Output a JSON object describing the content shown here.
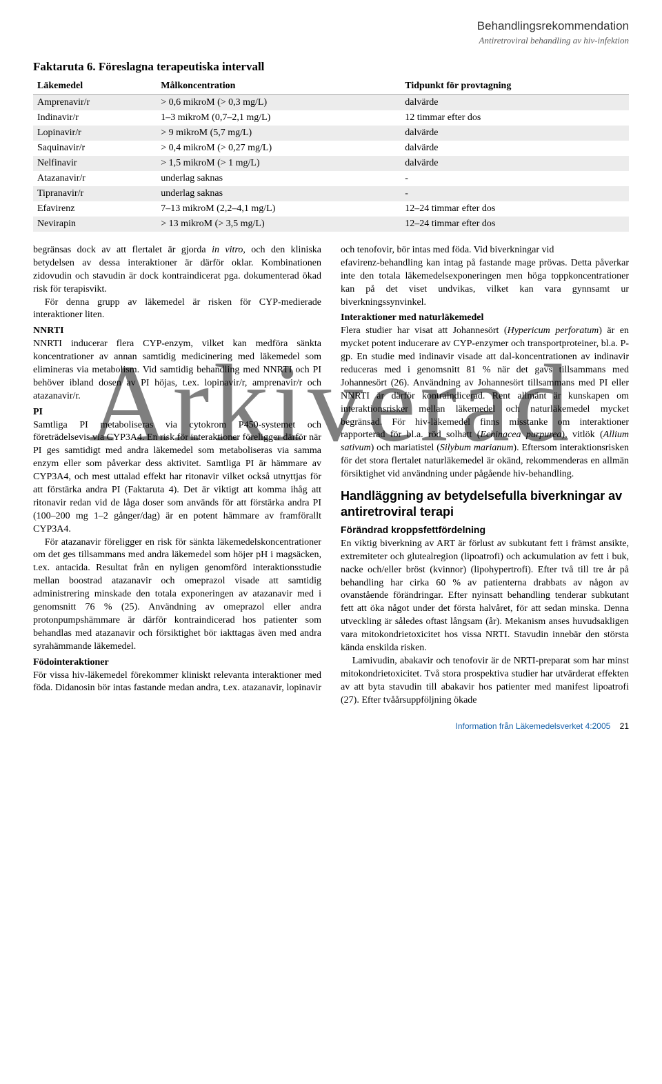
{
  "header": {
    "title": "Behandlingsrekommendation",
    "subtitle": "Antiretroviral behandling av hiv-infektion"
  },
  "factbox": {
    "title": "Faktaruta 6. Föreslagna terapeutiska intervall",
    "columns": [
      "Läkemedel",
      "Målkoncentration",
      "Tidpunkt för provtagning"
    ],
    "rows": [
      {
        "c0": "Amprenavir/r",
        "c1": "> 0,6 mikroM (> 0,3 mg/L)",
        "c2": "dalvärde",
        "shaded": true
      },
      {
        "c0": "Indinavir/r",
        "c1": "1–3 mikroM (0,7–2,1 mg/L)",
        "c2": "12 timmar efter dos",
        "shaded": false
      },
      {
        "c0": "Lopinavir/r",
        "c1": "> 9 mikroM (5,7 mg/L)",
        "c2": "dalvärde",
        "shaded": true
      },
      {
        "c0": "Saquinavir/r",
        "c1": "> 0,4 mikroM (> 0,27 mg/L)",
        "c2": "dalvärde",
        "shaded": false
      },
      {
        "c0": "Nelfinavir",
        "c1": "> 1,5 mikroM (> 1 mg/L)",
        "c2": "dalvärde",
        "shaded": true
      },
      {
        "c0": "Atazanavir/r",
        "c1": "underlag saknas",
        "c2": "-",
        "shaded": false
      },
      {
        "c0": "Tipranavir/r",
        "c1": "underlag saknas",
        "c2": "-",
        "shaded": true
      },
      {
        "c0": "Efavirenz",
        "c1": "7–13 mikroM (2,2–4,1 mg/L)",
        "c2": "12–24 timmar efter dos",
        "shaded": false
      },
      {
        "c0": "Nevirapin",
        "c1": "> 13 mikroM (> 3,5 mg/L)",
        "c2": "12–24 timmar efter dos",
        "shaded": true
      }
    ]
  },
  "body": {
    "p1a": "begränsas dock av att flertalet är gjorda ",
    "p1b": "in vitro",
    "p1c": ", och den kliniska betydelsen av dessa interaktioner är därför oklar. Kombinationen zidovudin och stavudin är dock kontraindicerat pga. dokumenterad ökad risk för terapisvikt.",
    "p2": "För denna grupp av läkemedel är risken för CYP-medierade interaktioner liten.",
    "nnrti_h": "NNRTI",
    "nnrti_p": "NNRTI inducerar flera CYP-enzym, vilket kan medföra sänkta koncentrationer av annan samtidig medicinering med läkemedel som elimineras via metabolism. Vid samtidig behandling med NNRTI och PI behöver ibland dosen av PI höjas, t.ex. lopinavir/r, amprenavir/r och atazanavir/r.",
    "pi_h": "PI",
    "pi_p1": "Samtliga PI metaboliseras via cytokrom P450-systemet och företrädelsevis via CYP3A4. En risk för interaktioner föreligger därför när PI ges samtidigt med andra läkemedel som metaboliseras via samma enzym eller som påverkar dess aktivitet. Samtliga PI är hämmare av CYP3A4, och mest uttalad effekt har ritonavir vilket också utnyttjas för att förstärka andra PI (Faktaruta 4). Det är viktigt att komma ihåg att ritonavir redan vid de låga doser som används för att förstärka andra PI (100–200 mg 1–2 gånger/dag) är en potent hämmare av framförallt CYP3A4.",
    "pi_p2": "För atazanavir föreligger en risk för sänkta läkemedelskoncentrationer om det ges tillsammans med andra läkemedel som höjer pH i magsäcken, t.ex. antacida. Resultat från en nyligen genomförd interaktionsstudie mellan boostrad atazanavir och omeprazol visade att samtidig administrering minskade den totala exponeringen av atazanavir med i genomsnitt 76 % (25). Användning av omeprazol eller andra protonpumpshämmare är därför kontraindicerad hos patienter som behandlas med atazanavir och försiktighet bör iakttagas även med andra syrahämmande läkemedel.",
    "food_h": "Födointeraktioner",
    "food_p": "För vissa hiv-läkemedel förekommer kliniskt relevanta interaktioner med föda. Didanosin bör intas fastande medan andra, t.ex. atazanavir, lopinavir och tenofovir, bör intas med föda. Vid biverkningar vid",
    "efav_p": "efavirenz-behandling kan intag på fastande mage prövas. Detta påverkar inte den totala läkemedelsexponeringen men höga toppkoncentrationer kan på det viset undvikas, vilket kan vara gynnsamt ur biverkningssynvinkel.",
    "natur_h": "Interaktioner med naturläkemedel",
    "natur_p1a": "Flera studier har visat att Johannesört (",
    "natur_p1b": "Hypericum perforatum",
    "natur_p1c": ") är en mycket potent inducerare av CYP-enzymer och transportproteiner, bl.a. P-gp. En studie med indinavir visade att dal-koncentrationen av indinavir reduceras med i genomsnitt 81 % när det gavs tillsammans med Johannesört (26). Användning av Johannesört tillsammans med PI eller NNRTI är därför kontraindicerad. Rent allmänt är kunskapen om interaktionsrisker mellan läkemedel och naturläkemedel mycket begränsad. För hiv-läkemedel finns misstanke om interaktioner rapporterad för bl.a. röd solhatt (",
    "natur_p1d": "Echinacea purpurea",
    "natur_p1e": "), vitlök (",
    "natur_p1f": "Allium sativum",
    "natur_p1g": ") och mariatistel (",
    "natur_p1h": "Silybum marianum",
    "natur_p1i": "). Eftersom interaktionsrisken för det stora flertalet naturläkemedel är okänd, rekommenderas en allmän försiktighet vid användning under pågående hiv-behandling.",
    "section_h": "Handläggning av betydelsefulla biverkningar av antiretroviral terapi",
    "forandr_h": "Förändrad kroppsfettfördelning",
    "forandr_p1": "En viktig biverkning av ART är förlust av subkutant fett i främst ansikte, extremiteter och glutealregion (lipoatrofi) och ackumulation av fett i buk, nacke och/eller bröst (kvinnor) (lipohypertrofi). Efter två till tre år på behandling har cirka 60 % av patienterna drabbats av någon av ovanstående förändringar. Efter nyinsatt behandling tenderar subkutant fett att öka något under det första halvåret, för att sedan minska. Denna utveckling är således oftast långsam (år). Mekanism anses huvudsakligen vara mitokondrietoxicitet hos vissa NRTI. Stavudin innebär den största kända enskilda risken.",
    "forandr_p2": "Lamivudin, abakavir och tenofovir är de NRTI-preparat som har minst mitokondrietoxicitet. Två stora prospektiva studier har utvärderat effekten av att byta stavudin till abakavir hos patienter med manifest lipoatrofi (27). Efter tvåårsuppföljning ökade"
  },
  "watermark": "Arkiverad",
  "footer": {
    "text": "Information från Läkemedelsverket 4:2005",
    "page": "21"
  }
}
